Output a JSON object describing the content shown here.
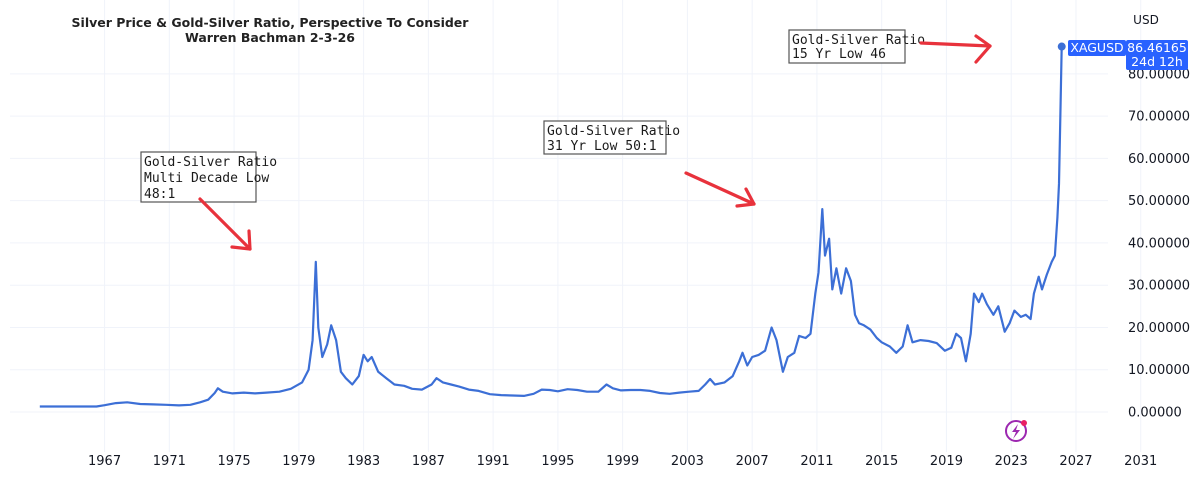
{
  "chart_data": {
    "type": "line",
    "title": "Silver Price & Gold-Silver Ratio, Perspective To Consider",
    "subtitle": "Warren Bachman 2-3-26",
    "unit_label": "USD",
    "xlabel": "",
    "ylabel": "",
    "xlim": [
      1963.0,
      2033.0
    ],
    "ylim": [
      -3.0,
      99.0
    ],
    "grid": true,
    "x_ticks": [
      "1967",
      "1971",
      "1975",
      "1979",
      "1983",
      "1987",
      "1991",
      "1995",
      "1999",
      "2003",
      "2007",
      "2011",
      "2015",
      "2019",
      "2023",
      "2027",
      "2031"
    ],
    "y_ticks": [
      "0.00000",
      "10.00000",
      "20.00000",
      "30.00000",
      "40.00000",
      "50.00000",
      "60.00000",
      "70.00000",
      "80.00000"
    ],
    "series": [
      {
        "name": "XAGUSD",
        "color": "#3c6fd6",
        "points": [
          [
            1963.0,
            1.29
          ],
          [
            1966.5,
            1.29
          ],
          [
            1967.0,
            1.6
          ],
          [
            1967.7,
            2.1
          ],
          [
            1968.4,
            2.3
          ],
          [
            1969.2,
            1.9
          ],
          [
            1970.0,
            1.8
          ],
          [
            1970.8,
            1.7
          ],
          [
            1971.6,
            1.55
          ],
          [
            1972.3,
            1.7
          ],
          [
            1972.9,
            2.3
          ],
          [
            1973.4,
            2.9
          ],
          [
            1973.8,
            4.5
          ],
          [
            1974.0,
            5.6
          ],
          [
            1974.3,
            4.8
          ],
          [
            1974.9,
            4.4
          ],
          [
            1975.6,
            4.6
          ],
          [
            1976.3,
            4.4
          ],
          [
            1977.0,
            4.6
          ],
          [
            1977.8,
            4.8
          ],
          [
            1978.5,
            5.5
          ],
          [
            1979.2,
            7.0
          ],
          [
            1979.6,
            10.0
          ],
          [
            1979.85,
            17.0
          ],
          [
            1980.05,
            35.5
          ],
          [
            1980.2,
            20.0
          ],
          [
            1980.45,
            13.0
          ],
          [
            1980.75,
            16.0
          ],
          [
            1981.0,
            20.5
          ],
          [
            1981.3,
            17.0
          ],
          [
            1981.6,
            9.5
          ],
          [
            1981.9,
            8.0
          ],
          [
            1982.3,
            6.5
          ],
          [
            1982.7,
            8.5
          ],
          [
            1983.0,
            13.5
          ],
          [
            1983.25,
            12.0
          ],
          [
            1983.5,
            13.0
          ],
          [
            1983.9,
            9.5
          ],
          [
            1984.4,
            8.0
          ],
          [
            1984.9,
            6.5
          ],
          [
            1985.5,
            6.2
          ],
          [
            1986.0,
            5.5
          ],
          [
            1986.6,
            5.3
          ],
          [
            1987.2,
            6.5
          ],
          [
            1987.5,
            8.0
          ],
          [
            1987.9,
            7.0
          ],
          [
            1988.4,
            6.5
          ],
          [
            1988.9,
            6.0
          ],
          [
            1989.5,
            5.3
          ],
          [
            1990.1,
            5.0
          ],
          [
            1990.8,
            4.2
          ],
          [
            1991.5,
            4.0
          ],
          [
            1992.2,
            3.9
          ],
          [
            1992.9,
            3.8
          ],
          [
            1993.5,
            4.3
          ],
          [
            1994.0,
            5.3
          ],
          [
            1994.5,
            5.2
          ],
          [
            1995.0,
            4.9
          ],
          [
            1995.6,
            5.4
          ],
          [
            1996.2,
            5.2
          ],
          [
            1996.8,
            4.8
          ],
          [
            1997.5,
            4.8
          ],
          [
            1998.0,
            6.5
          ],
          [
            1998.4,
            5.6
          ],
          [
            1998.9,
            5.1
          ],
          [
            1999.5,
            5.2
          ],
          [
            2000.1,
            5.2
          ],
          [
            2000.7,
            5.0
          ],
          [
            2001.3,
            4.5
          ],
          [
            2001.9,
            4.3
          ],
          [
            2002.5,
            4.6
          ],
          [
            2003.1,
            4.8
          ],
          [
            2003.7,
            5.0
          ],
          [
            2004.1,
            6.5
          ],
          [
            2004.4,
            7.8
          ],
          [
            2004.7,
            6.5
          ],
          [
            2005.3,
            7.0
          ],
          [
            2005.8,
            8.5
          ],
          [
            2006.2,
            12.0
          ],
          [
            2006.4,
            14.0
          ],
          [
            2006.7,
            11.0
          ],
          [
            2007.0,
            13.0
          ],
          [
            2007.4,
            13.5
          ],
          [
            2007.8,
            14.5
          ],
          [
            2008.2,
            20.0
          ],
          [
            2008.5,
            17.0
          ],
          [
            2008.9,
            9.5
          ],
          [
            2009.2,
            13.0
          ],
          [
            2009.6,
            14.0
          ],
          [
            2009.9,
            18.0
          ],
          [
            2010.3,
            17.5
          ],
          [
            2010.6,
            18.5
          ],
          [
            2010.9,
            28.0
          ],
          [
            2011.1,
            33.0
          ],
          [
            2011.33,
            48.0
          ],
          [
            2011.5,
            37.0
          ],
          [
            2011.75,
            41.0
          ],
          [
            2011.95,
            29.0
          ],
          [
            2012.2,
            34.0
          ],
          [
            2012.5,
            28.0
          ],
          [
            2012.8,
            34.0
          ],
          [
            2013.1,
            31.0
          ],
          [
            2013.35,
            23.0
          ],
          [
            2013.6,
            21.0
          ],
          [
            2013.9,
            20.5
          ],
          [
            2014.3,
            19.5
          ],
          [
            2014.7,
            17.5
          ],
          [
            2015.0,
            16.5
          ],
          [
            2015.5,
            15.5
          ],
          [
            2015.9,
            14.0
          ],
          [
            2016.3,
            15.5
          ],
          [
            2016.6,
            20.5
          ],
          [
            2016.9,
            16.5
          ],
          [
            2017.4,
            17.0
          ],
          [
            2017.9,
            16.8
          ],
          [
            2018.4,
            16.3
          ],
          [
            2018.9,
            14.5
          ],
          [
            2019.3,
            15.2
          ],
          [
            2019.6,
            18.5
          ],
          [
            2019.9,
            17.5
          ],
          [
            2020.2,
            12.0
          ],
          [
            2020.5,
            18.5
          ],
          [
            2020.7,
            28.0
          ],
          [
            2021.0,
            26.0
          ],
          [
            2021.2,
            28.0
          ],
          [
            2021.5,
            25.5
          ],
          [
            2021.9,
            23.0
          ],
          [
            2022.2,
            25.0
          ],
          [
            2022.6,
            19.0
          ],
          [
            2022.9,
            21.0
          ],
          [
            2023.2,
            24.0
          ],
          [
            2023.6,
            22.5
          ],
          [
            2023.9,
            23.0
          ],
          [
            2024.2,
            22.0
          ],
          [
            2024.4,
            28.0
          ],
          [
            2024.7,
            32.0
          ],
          [
            2024.9,
            29.0
          ],
          [
            2025.2,
            32.5
          ],
          [
            2025.5,
            35.5
          ],
          [
            2025.7,
            37.0
          ],
          [
            2025.85,
            46.0
          ],
          [
            2025.95,
            54.0
          ],
          [
            2026.05,
            73.0
          ],
          [
            2026.12,
            86.46
          ]
        ]
      }
    ],
    "last_value": {
      "symbol": "XAGUSD",
      "price": "86.46165",
      "countdown": "24d 12h"
    },
    "annotations": [
      {
        "lines": [
          "Gold-Silver Ratio",
          "Multi Decade Low",
          "48:1"
        ]
      },
      {
        "lines": [
          "Gold-Silver Ratio",
          "31 Yr Low 50:1"
        ]
      },
      {
        "lines": [
          "Gold-Silver Ratio",
          "15 Yr Low 46"
        ]
      }
    ]
  },
  "icons": {
    "logo": "lightning-bolt-icon",
    "logo_color": "#9c27b0"
  },
  "colors": {
    "series": "#3c6fd6",
    "arrow": "#e8323c",
    "badge": "#2962ff"
  }
}
